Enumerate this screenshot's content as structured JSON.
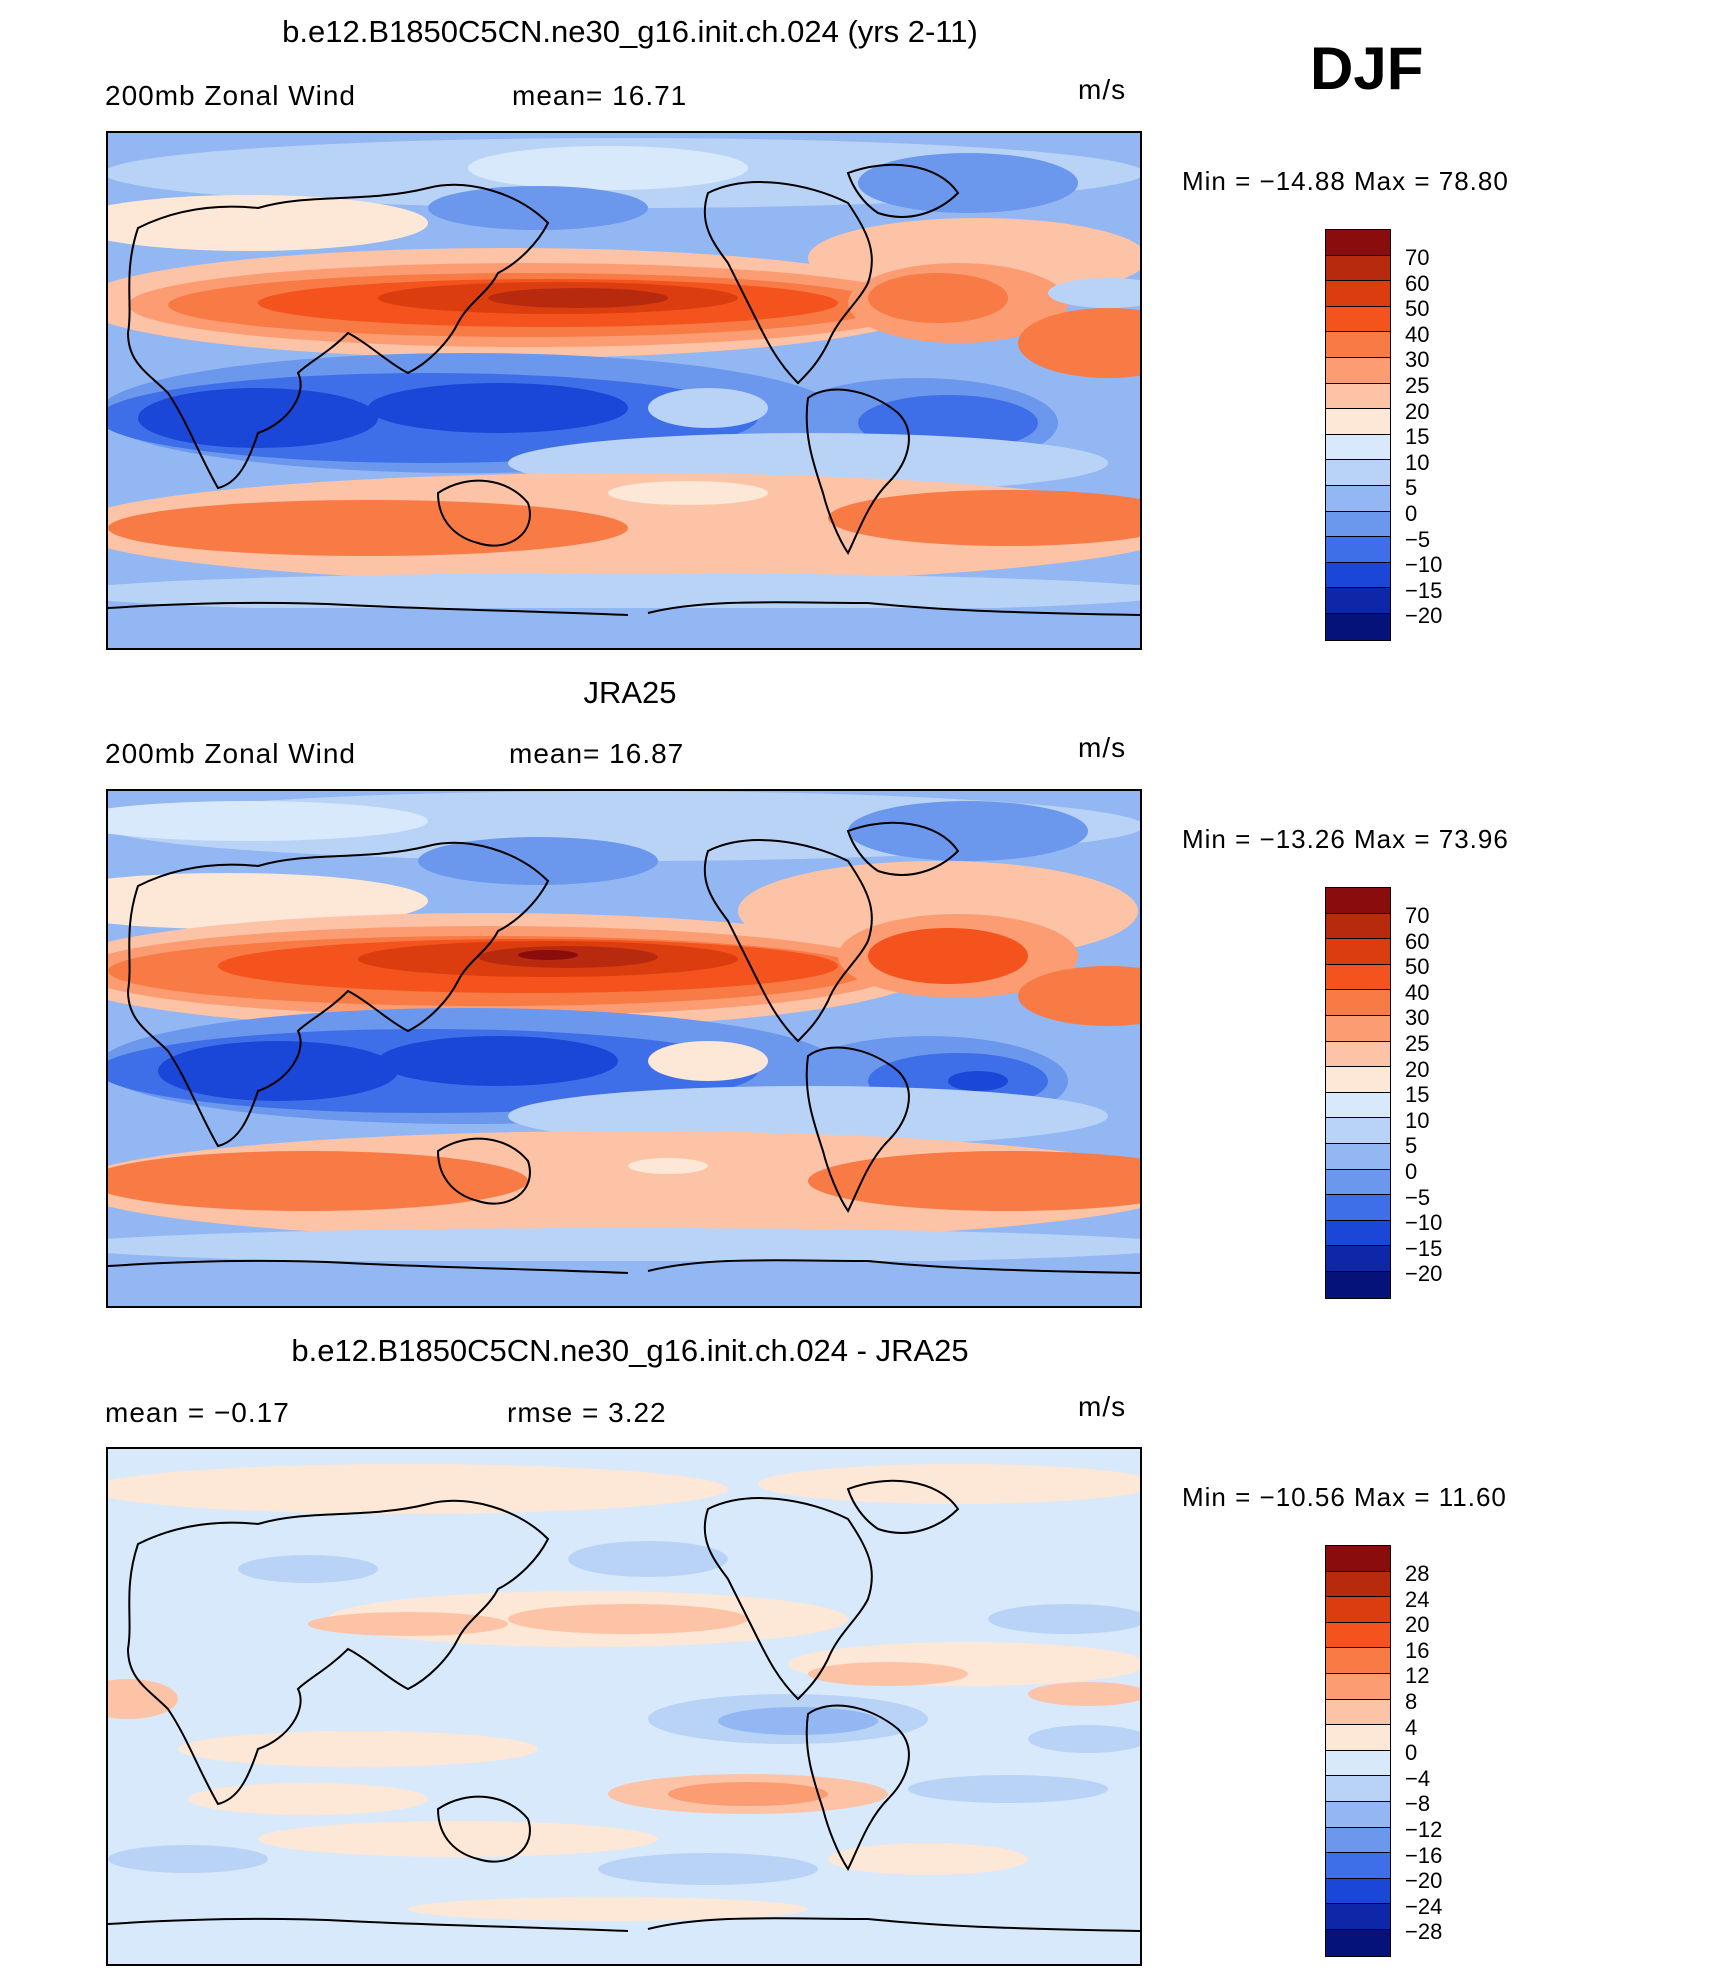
{
  "season": "DJF",
  "panels": [
    {
      "title": "b.e12.B1850C5CN.ne30_g16.init.ch.024 (yrs 2-11)",
      "left_text": "200mb  Zonal  Wind",
      "mid_text": "mean=   16.71",
      "units": "m/s",
      "minmax": "Min  =  −14.88  Max  =    78.80",
      "legend": {
        "labels": [
          "70",
          "60",
          "50",
          "40",
          "30",
          "25",
          "20",
          "15",
          "10",
          "5",
          "0",
          "−5",
          "−10",
          "−15",
          "−20"
        ],
        "colors": [
          "#8b0c0c",
          "#b82a0d",
          "#dc3d0f",
          "#f4531d",
          "#f87a45",
          "#fb9c73",
          "#fdc3a6",
          "#fde7d6",
          "#d8e9fb",
          "#b9d3f7",
          "#93b7f2",
          "#6b97ed",
          "#3f6fe8",
          "#1b47d9",
          "#0d27a8",
          "#05127a"
        ]
      }
    },
    {
      "title": "JRA25",
      "left_text": "200mb  Zonal  Wind",
      "mid_text": "mean=   16.87",
      "units": "m/s",
      "minmax": "Min  =  −13.26  Max  =    73.96",
      "legend": {
        "labels": [
          "70",
          "60",
          "50",
          "40",
          "30",
          "25",
          "20",
          "15",
          "10",
          "5",
          "0",
          "−5",
          "−10",
          "−15",
          "−20"
        ],
        "colors": [
          "#8b0c0c",
          "#b82a0d",
          "#dc3d0f",
          "#f4531d",
          "#f87a45",
          "#fb9c73",
          "#fdc3a6",
          "#fde7d6",
          "#d8e9fb",
          "#b9d3f7",
          "#93b7f2",
          "#6b97ed",
          "#3f6fe8",
          "#1b47d9",
          "#0d27a8",
          "#05127a"
        ]
      }
    },
    {
      "title": "b.e12.B1850C5CN.ne30_g16.init.ch.024 - JRA25",
      "left_text": "mean  =    −0.17",
      "mid_text": "rmse  =      3.22",
      "units": "m/s",
      "minmax": "Min  =  −10.56  Max  =    11.60",
      "legend": {
        "labels": [
          "28",
          "24",
          "20",
          "16",
          "12",
          "8",
          "4",
          "0",
          "−4",
          "−8",
          "−12",
          "−16",
          "−20",
          "−24",
          "−28"
        ],
        "colors": [
          "#8b0c0c",
          "#b82a0d",
          "#dc3d0f",
          "#f4531d",
          "#f87a45",
          "#fb9c73",
          "#fdc3a6",
          "#fde7d6",
          "#d8e9fb",
          "#b9d3f7",
          "#93b7f2",
          "#6b97ed",
          "#3f6fe8",
          "#1b47d9",
          "#0d27a8",
          "#05127a"
        ]
      }
    }
  ]
}
